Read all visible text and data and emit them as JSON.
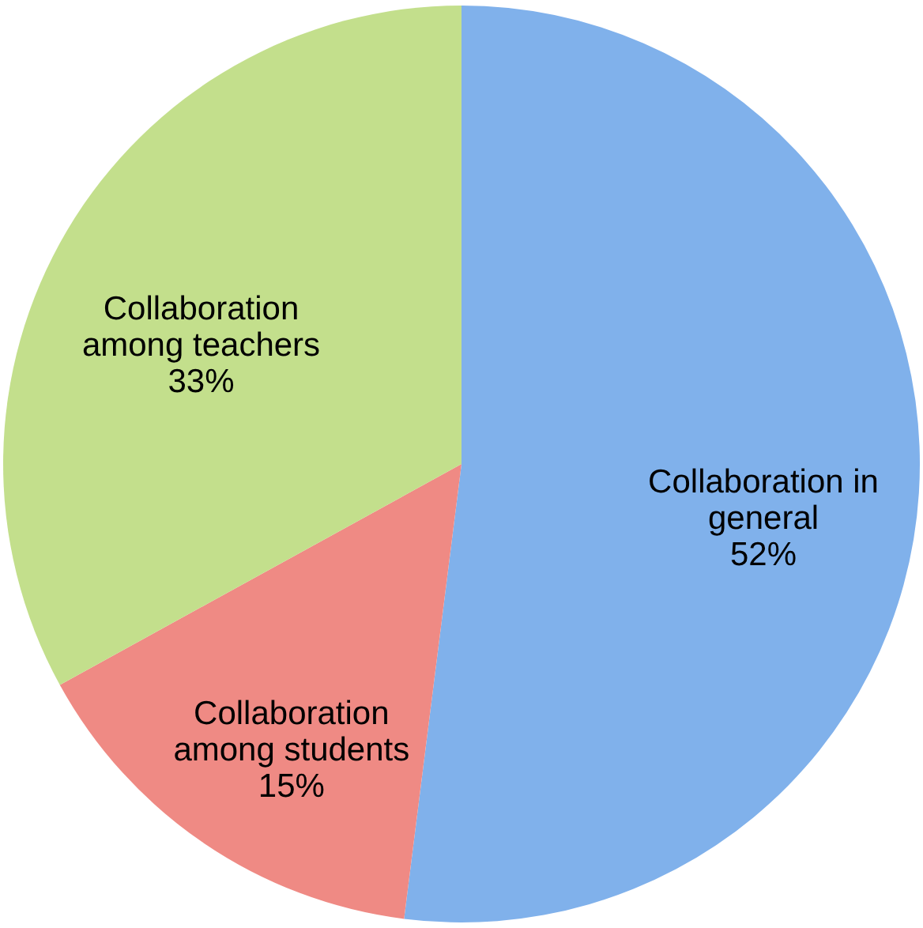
{
  "chart_data": {
    "type": "pie",
    "categories": [
      "Collaboration in general",
      "Collaboration among students",
      "Collaboration among teachers"
    ],
    "values": [
      52,
      15,
      33
    ],
    "value_labels": [
      "52%",
      "15%",
      "33%"
    ],
    "colors": [
      "#80b1eb",
      "#ef8a84",
      "#c3df8c"
    ],
    "legend": false
  }
}
